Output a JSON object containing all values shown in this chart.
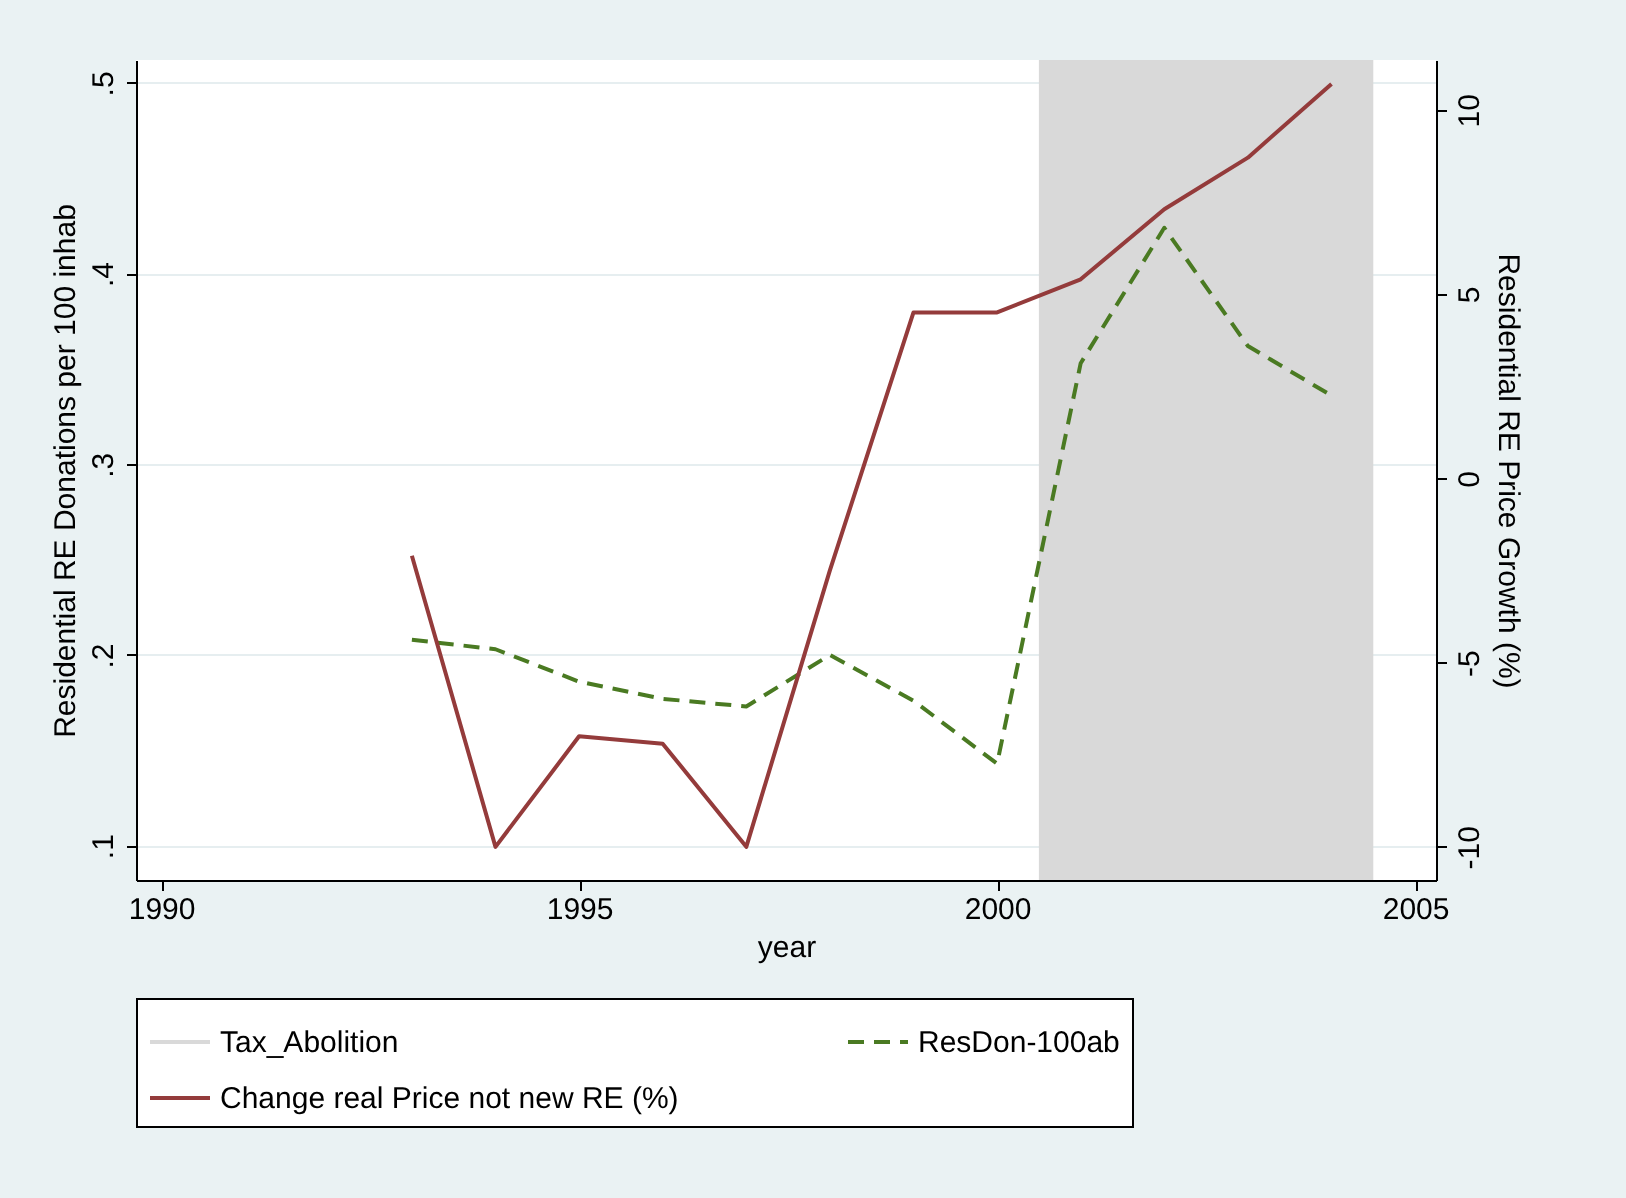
{
  "chart_data": {
    "type": "line",
    "xlabel": "year",
    "ylabel": "Residential RE Donations per 100 inhab",
    "y2label": "Residential RE Price Growth (%)",
    "x": [
      1993,
      1994,
      1995,
      1996,
      1997,
      1998,
      1999,
      2000,
      2001,
      2002,
      2003,
      2004
    ],
    "series": [
      {
        "name": "ResDon-100ab",
        "color": "#4a7a22",
        "line_style": "dashed",
        "values": [
          0.208,
          0.203,
          0.186,
          0.177,
          0.173,
          0.2,
          0.176,
          0.143,
          0.353,
          0.424,
          0.362,
          0.336
        ]
      },
      {
        "name": "Change real Price not new RE (%)",
        "color": "#943b3b",
        "line_style": "solid",
        "axis": "y2",
        "values": [
          -2.1,
          -10,
          -7,
          -7.2,
          -10,
          -2.5,
          4.5,
          4.5,
          5.4,
          7.3,
          8.7,
          10.7
        ]
      }
    ],
    "xlim": [
      1989.7,
      2005.25
    ],
    "xticks": [
      1990,
      1995,
      2000,
      2005
    ],
    "ylim": [
      0.082,
      0.512
    ],
    "yticks": [
      {
        "value": 0.1,
        "label": ".1"
      },
      {
        "value": 0.2,
        "label": ".2"
      },
      {
        "value": 0.3,
        "label": ".3"
      },
      {
        "value": 0.4,
        "label": ".4"
      },
      {
        "value": 0.5,
        "label": ".5"
      }
    ],
    "y2lim": [
      -10.9,
      11.35
    ],
    "y2ticks": [
      -10,
      -5,
      0,
      5,
      10
    ],
    "bands": [
      {
        "axis": "x",
        "from": 2000.5,
        "to": 2004.5,
        "label": "Tax_Abolition",
        "color": "#d9d9d9"
      }
    ],
    "grid": "y",
    "legend": "bottom"
  }
}
